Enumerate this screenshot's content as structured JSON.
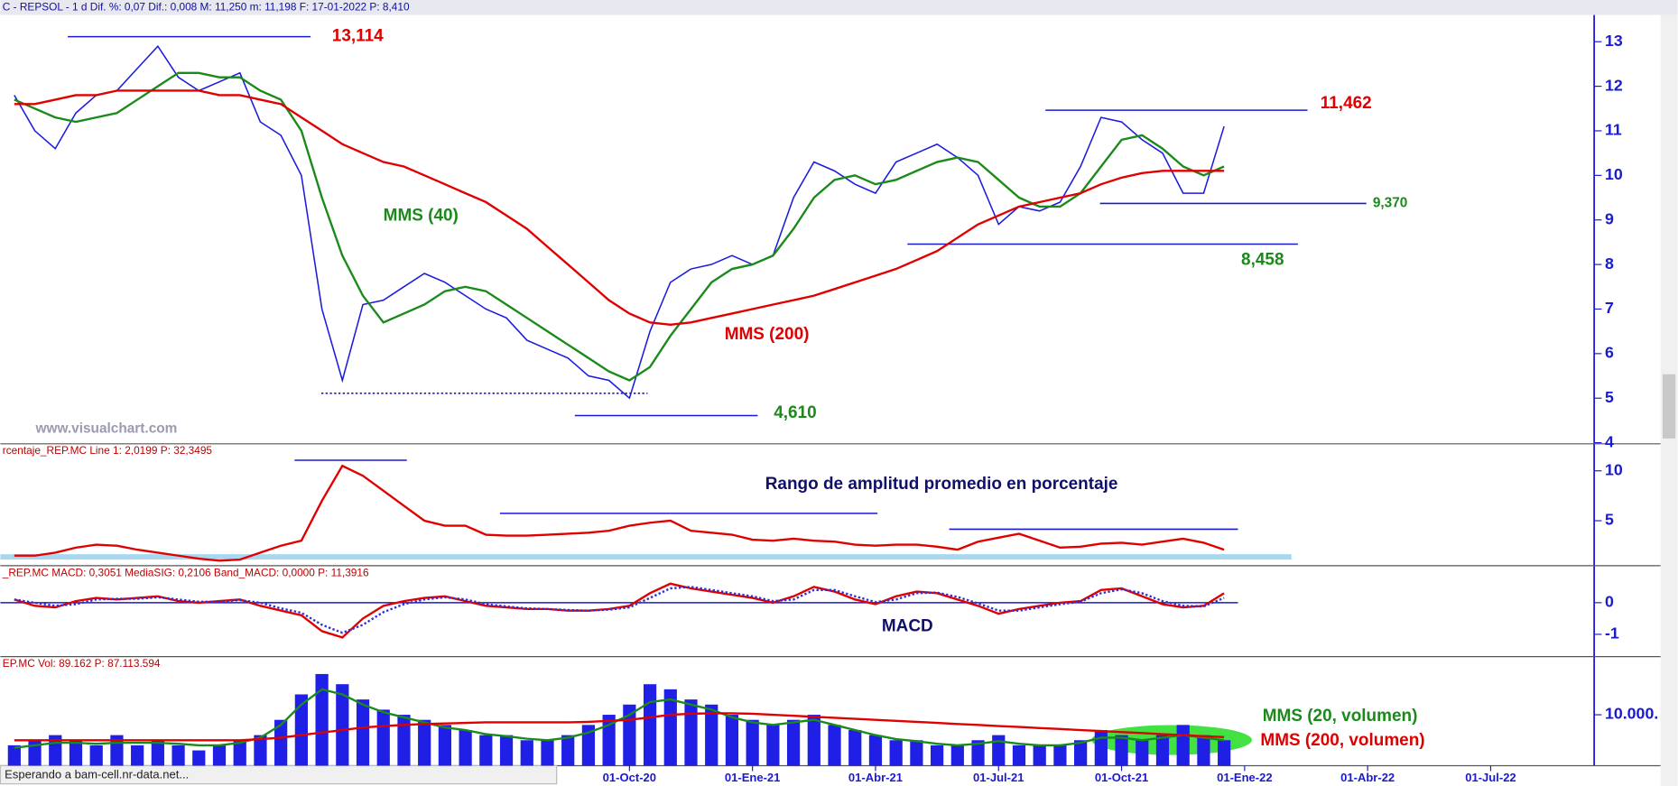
{
  "chart_data": [
    {
      "type": "line",
      "header": "C - REPSOL - 1 d  Dif. %: 0,07  Dif.: 0,008  M: 11,250  m: 11,198  F: 17-01-2022  P: 8,410",
      "watermark": "www.visualchart.com",
      "ylim": [
        4,
        13.6
      ],
      "yticks": [
        4,
        5,
        6,
        7,
        8,
        9,
        10,
        11,
        12,
        13
      ],
      "series": [
        {
          "color": "#1a1ae0",
          "values": [
            11.8,
            11.0,
            10.6,
            11.4,
            11.8,
            11.9,
            12.4,
            12.9,
            12.2,
            11.9,
            12.1,
            12.3,
            11.2,
            10.9,
            10.0,
            7.0,
            5.4,
            7.1,
            7.2,
            7.5,
            7.8,
            7.6,
            7.3,
            7.0,
            6.8,
            6.3,
            6.1,
            5.9,
            5.5,
            5.4,
            5.0,
            6.5,
            7.6,
            7.9,
            8.0,
            8.2,
            8.0,
            8.2,
            9.5,
            10.3,
            10.1,
            9.8,
            9.6,
            10.3,
            10.5,
            10.7,
            10.4,
            10.0,
            8.9,
            9.3,
            9.2,
            9.4,
            10.2,
            11.3,
            11.2,
            10.8,
            10.5,
            9.6,
            9.6,
            11.1,
            null,
            null,
            null,
            null,
            null,
            null,
            null,
            null,
            null,
            null,
            null,
            null,
            null,
            null,
            null,
            null,
            null,
            null
          ]
        },
        {
          "name": "MMS (40)",
          "color": "#1a8a1a",
          "values": [
            11.7,
            11.5,
            11.3,
            11.2,
            11.3,
            11.4,
            11.7,
            12.0,
            12.3,
            12.3,
            12.2,
            12.2,
            11.9,
            11.7,
            11.0,
            9.5,
            8.2,
            7.3,
            6.7,
            6.9,
            7.1,
            7.4,
            7.5,
            7.4,
            7.1,
            6.8,
            6.5,
            6.2,
            5.9,
            5.6,
            5.4,
            5.7,
            6.4,
            7.0,
            7.6,
            7.9,
            8.0,
            8.2,
            8.8,
            9.5,
            9.9,
            10.0,
            9.8,
            9.9,
            10.1,
            10.3,
            10.4,
            10.3,
            9.9,
            9.5,
            9.3,
            9.3,
            9.6,
            10.2,
            10.8,
            10.9,
            10.6,
            10.2,
            10.0,
            10.2,
            null,
            null,
            null,
            null,
            null,
            null,
            null,
            null,
            null,
            null,
            null,
            null,
            null,
            null,
            null,
            null,
            null,
            null
          ]
        },
        {
          "name": "MMS (200)",
          "color": "#e00000",
          "values": [
            11.6,
            11.6,
            11.7,
            11.8,
            11.8,
            11.9,
            11.9,
            11.9,
            11.9,
            11.9,
            11.8,
            11.8,
            11.7,
            11.6,
            11.3,
            11.0,
            10.7,
            10.5,
            10.3,
            10.2,
            10.0,
            9.8,
            9.6,
            9.4,
            9.1,
            8.8,
            8.4,
            8.0,
            7.6,
            7.2,
            6.9,
            6.7,
            6.65,
            6.7,
            6.8,
            6.9,
            7.0,
            7.1,
            7.2,
            7.3,
            7.45,
            7.6,
            7.75,
            7.9,
            8.1,
            8.3,
            8.6,
            8.9,
            9.1,
            9.3,
            9.4,
            9.5,
            9.6,
            9.8,
            9.95,
            10.05,
            10.1,
            10.1,
            10.1,
            10.1,
            null,
            null,
            null,
            null,
            null,
            null,
            null,
            null,
            null,
            null,
            null,
            null,
            null,
            null,
            null,
            null,
            null,
            null
          ]
        }
      ],
      "annotations": [
        {
          "value": 13.114,
          "label": "13,114"
        },
        {
          "value": 11.462,
          "label": "11,462"
        },
        {
          "value": 9.37,
          "label": "9,370"
        },
        {
          "value": 8.458,
          "label": "8,458"
        },
        {
          "value": 4.61,
          "label": "4,610"
        },
        {
          "value": 5.11
        }
      ]
    },
    {
      "type": "line",
      "header": "rcentaje_REP.MC  Line 1: 2,0199  P: 32,3495",
      "title": "Rango de amplitud promedio en porcentaje",
      "ylim": [
        0.6,
        12.6
      ],
      "yticks": [
        5,
        10
      ],
      "series": [
        {
          "color": "#e00000",
          "values": [
            1.5,
            1.5,
            1.8,
            2.3,
            2.6,
            2.5,
            2.1,
            1.8,
            1.5,
            1.2,
            1.0,
            1.1,
            1.8,
            2.5,
            3.0,
            7.0,
            10.5,
            9.5,
            8.0,
            6.5,
            5.0,
            4.5,
            4.5,
            3.6,
            3.5,
            3.5,
            3.6,
            3.7,
            3.8,
            4.0,
            4.5,
            4.8,
            5.0,
            4.0,
            3.8,
            3.6,
            3.1,
            3.0,
            3.2,
            3.0,
            2.9,
            2.6,
            2.5,
            2.6,
            2.6,
            2.4,
            2.1,
            2.9,
            3.3,
            3.7,
            3.0,
            2.3,
            2.4,
            2.7,
            2.8,
            2.6,
            2.9,
            3.2,
            2.8,
            2.1,
            null,
            null,
            null,
            null,
            null,
            null,
            null,
            null,
            null,
            null,
            null,
            null,
            null,
            null,
            null,
            null,
            null,
            null
          ]
        }
      ],
      "annotations": [
        {
          "value": 11.06
        },
        {
          "value": 5.74
        },
        {
          "value": 4.15
        },
        {
          "value": 1.38
        }
      ]
    },
    {
      "type": "line",
      "header": "_REP.MC  MACD: 0,3051  MediaSIG: 0,2106  Band_MACD: 0,0000  P: 11,3916",
      "title": "MACD",
      "ylim": [
        -1.67,
        1.1
      ],
      "yticks": [
        -1,
        0
      ],
      "series": [
        {
          "color": "#e00000",
          "values": [
            0.1,
            -0.1,
            -0.15,
            0.05,
            0.15,
            0.1,
            0.15,
            0.2,
            0.05,
            0.0,
            0.05,
            0.1,
            -0.1,
            -0.25,
            -0.4,
            -0.9,
            -1.1,
            -0.5,
            -0.1,
            0.05,
            0.15,
            0.2,
            0.05,
            -0.1,
            -0.15,
            -0.2,
            -0.2,
            -0.25,
            -0.25,
            -0.2,
            -0.1,
            0.3,
            0.6,
            0.45,
            0.35,
            0.25,
            0.15,
            0.0,
            0.2,
            0.5,
            0.35,
            0.1,
            -0.05,
            0.2,
            0.35,
            0.3,
            0.1,
            -0.1,
            -0.35,
            -0.2,
            -0.1,
            0.0,
            0.05,
            0.4,
            0.45,
            0.2,
            -0.05,
            -0.15,
            -0.1,
            0.3,
            null,
            null,
            null,
            null,
            null,
            null,
            null,
            null,
            null,
            null,
            null,
            null,
            null,
            null,
            null,
            null,
            null,
            null
          ]
        },
        {
          "color": "#3030d0",
          "style": "dotted",
          "values": [
            0.1,
            0.0,
            -0.1,
            -0.05,
            0.1,
            0.12,
            0.12,
            0.17,
            0.1,
            0.03,
            0.03,
            0.08,
            0.0,
            -0.18,
            -0.32,
            -0.7,
            -0.95,
            -0.7,
            -0.3,
            -0.05,
            0.1,
            0.17,
            0.1,
            -0.05,
            -0.12,
            -0.18,
            -0.2,
            -0.23,
            -0.25,
            -0.22,
            -0.15,
            0.15,
            0.45,
            0.5,
            0.4,
            0.3,
            0.2,
            0.05,
            0.1,
            0.4,
            0.4,
            0.2,
            0.02,
            0.1,
            0.3,
            0.32,
            0.18,
            -0.02,
            -0.25,
            -0.25,
            -0.15,
            -0.05,
            0.03,
            0.3,
            0.42,
            0.3,
            0.05,
            -0.1,
            -0.12,
            0.15,
            null,
            null,
            null,
            null,
            null,
            null,
            null,
            null,
            null,
            null,
            null,
            null,
            null,
            null,
            null,
            null,
            null,
            null
          ]
        }
      ],
      "annotations": [
        {
          "value": 0
        }
      ]
    },
    {
      "type": "bar",
      "header": "EP.MC  Vol: 89.162  P: 87.113.594",
      "ylim": [
        0,
        21000000
      ],
      "yticks": [
        {
          "value": 10000000,
          "label": "10.000."
        }
      ],
      "categories": [
        null,
        null,
        null,
        null,
        null,
        null,
        null,
        null,
        null,
        null,
        null,
        null,
        null,
        null,
        null,
        null,
        null,
        null,
        null,
        null,
        null,
        null,
        null,
        null,
        null,
        null,
        null,
        null,
        null,
        null,
        "01-Oct-20",
        null,
        null,
        null,
        null,
        null,
        "01-Ene-21",
        null,
        null,
        null,
        null,
        null,
        "01-Abr-21",
        null,
        null,
        null,
        null,
        null,
        "01-Jul-21",
        null,
        null,
        null,
        null,
        null,
        "01-Oct-21",
        null,
        null,
        null,
        null,
        null,
        "01-Ene-22",
        null,
        null,
        null,
        null,
        null,
        "01-Abr-22",
        null,
        null,
        null,
        null,
        null,
        "01-Jul-22",
        null,
        null,
        null,
        null,
        null
      ],
      "series": [
        {
          "type": "bar",
          "color": "#1f1fe6",
          "values": [
            4000000,
            5000000,
            6000000,
            5000000,
            4000000,
            6000000,
            4000000,
            5000000,
            4000000,
            3000000,
            4000000,
            5000000,
            6000000,
            9000000,
            14000000,
            18000000,
            16000000,
            13000000,
            11000000,
            10000000,
            9000000,
            8000000,
            7000000,
            6000000,
            6000000,
            5000000,
            5000000,
            6000000,
            8000000,
            10000000,
            12000000,
            16000000,
            15000000,
            13000000,
            12000000,
            10000000,
            9000000,
            8000000,
            9000000,
            10000000,
            8000000,
            7000000,
            6000000,
            5000000,
            5000000,
            4000000,
            4000000,
            5000000,
            6000000,
            4000000,
            4000000,
            4000000,
            5000000,
            7000000,
            6000000,
            5000000,
            6000000,
            8000000,
            6000000,
            5000000,
            null,
            null,
            null,
            null,
            null,
            null,
            null,
            null,
            null,
            null,
            null,
            null,
            null,
            null,
            null,
            null,
            null,
            null
          ]
        },
        {
          "name": "MMS (20, volumen)",
          "color": "#1a8a1a",
          "values": [
            3500000,
            4000000,
            4500000,
            4500000,
            4300000,
            4500000,
            4500000,
            4500000,
            4300000,
            4000000,
            4000000,
            4500000,
            5500000,
            8000000,
            12000000,
            15000000,
            14000000,
            12000000,
            10500000,
            9500000,
            8500000,
            7500000,
            7000000,
            6200000,
            5800000,
            5300000,
            5000000,
            5500000,
            6500000,
            8000000,
            10000000,
            12500000,
            13000000,
            12000000,
            11000000,
            9500000,
            8500000,
            8000000,
            8500000,
            9000000,
            8000000,
            7000000,
            6000000,
            5200000,
            4800000,
            4300000,
            4000000,
            4300000,
            4800000,
            4300000,
            4000000,
            4000000,
            4500000,
            5500000,
            5500000,
            5000000,
            5500000,
            6000000,
            5500000,
            5000000,
            null,
            null,
            null,
            null,
            null,
            null,
            null,
            null,
            null,
            null,
            null,
            null,
            null,
            null,
            null,
            null,
            null,
            null
          ]
        },
        {
          "name": "MMS (200, volumen)",
          "color": "#e00000",
          "values": [
            5000000,
            5000000,
            5000000,
            5000000,
            5000000,
            5000000,
            5000000,
            5000000,
            5000000,
            5000000,
            5000000,
            5000000,
            5200000,
            5500000,
            6000000,
            6500000,
            7000000,
            7500000,
            7800000,
            8000000,
            8200000,
            8300000,
            8400000,
            8500000,
            8500000,
            8500000,
            8500000,
            8500000,
            8600000,
            8800000,
            9000000,
            9500000,
            10000000,
            10200000,
            10300000,
            10300000,
            10200000,
            10000000,
            9800000,
            9600000,
            9400000,
            9200000,
            9000000,
            8800000,
            8600000,
            8400000,
            8200000,
            8000000,
            7800000,
            7600000,
            7400000,
            7200000,
            7000000,
            6800000,
            6600000,
            6400000,
            6200000,
            6000000,
            5800000,
            5600000,
            null,
            null,
            null,
            null,
            null,
            null,
            null,
            null,
            null,
            null,
            null,
            null,
            null,
            null,
            null,
            null,
            null,
            null
          ]
        }
      ]
    }
  ],
  "status_bar": "Esperando a bam-cell.nr-data.net..."
}
